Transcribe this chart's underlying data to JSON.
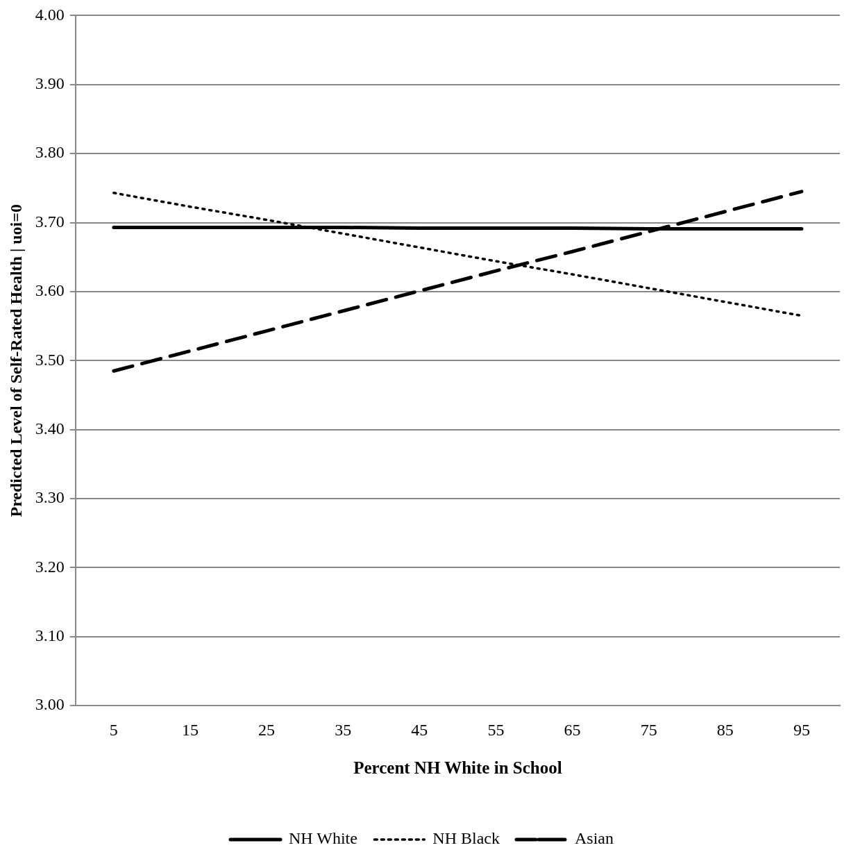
{
  "chart_data": {
    "type": "line",
    "xlabel": "Percent NH White in School",
    "ylabel": "Predicted Level of Self-Rated Health | uoi=0",
    "categories": [
      "5",
      "15",
      "25",
      "35",
      "45",
      "55",
      "65",
      "75",
      "85",
      "95"
    ],
    "ylim": [
      3.0,
      4.0
    ],
    "yticks": [
      {
        "value": 3.0,
        "label": "3.00"
      },
      {
        "value": 3.1,
        "label": "3.10"
      },
      {
        "value": 3.2,
        "label": "3.20"
      },
      {
        "value": 3.3,
        "label": "3.30"
      },
      {
        "value": 3.4,
        "label": "3.40"
      },
      {
        "value": 3.5,
        "label": "3.50"
      },
      {
        "value": 3.6,
        "label": "3.60"
      },
      {
        "value": 3.7,
        "label": "3.70"
      },
      {
        "value": 3.8,
        "label": "3.80"
      },
      {
        "value": 3.9,
        "label": "3.90"
      },
      {
        "value": 4.0,
        "label": "4.00"
      }
    ],
    "grid": "y",
    "legend": "bottom",
    "marker": "none",
    "series": [
      {
        "name": "NH White",
        "color": "#000000",
        "line_style": "solid",
        "values": [
          3.693,
          3.693,
          3.693,
          3.693,
          3.692,
          3.692,
          3.692,
          3.691,
          3.691,
          3.691
        ]
      },
      {
        "name": "NH Black",
        "color": "#000000",
        "line_style": "dotted",
        "values": [
          3.743,
          3.723,
          3.704,
          3.684,
          3.664,
          3.644,
          3.625,
          3.605,
          3.585,
          3.565
        ]
      },
      {
        "name": "Asian",
        "color": "#000000",
        "line_style": "dashed",
        "values": [
          3.485,
          3.514,
          3.543,
          3.572,
          3.601,
          3.63,
          3.658,
          3.687,
          3.716,
          3.745
        ]
      }
    ]
  }
}
